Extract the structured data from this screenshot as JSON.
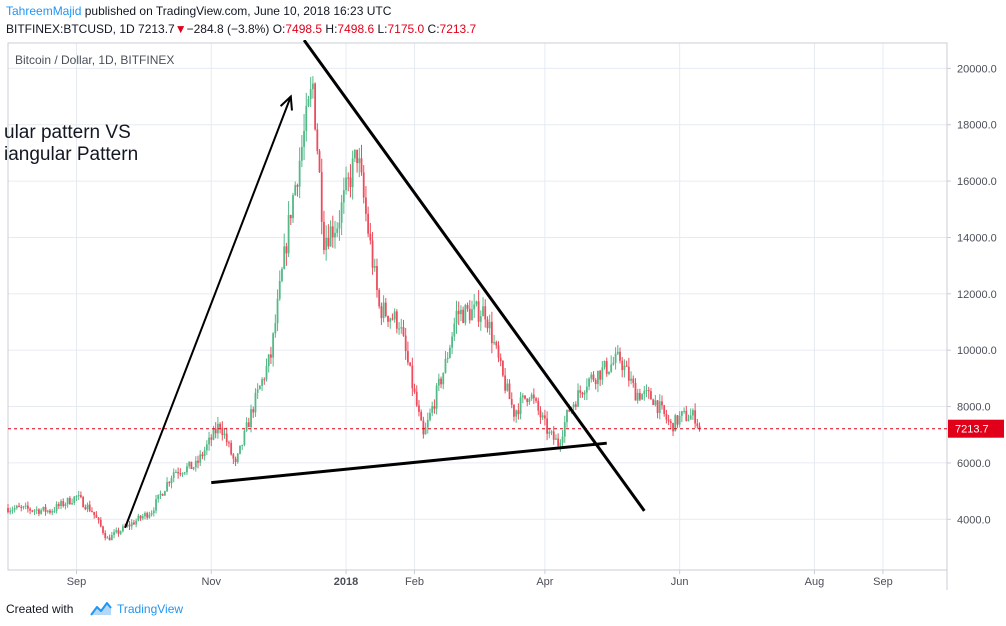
{
  "header": {
    "author": "TahreemMajid",
    "published_text": "published on TradingView.com, June 10, 2018 16:23 UTC",
    "symbol": "BITFINEX:BTCUSD, 1D",
    "last": "7213.7",
    "down_arrow": "▼",
    "change": "−284.8 (−3.8%)",
    "o_label": "O:",
    "o_value": "7498.5",
    "h_label": "H:",
    "h_value": "7498.6",
    "l_label": "L:",
    "l_value": "7175.0",
    "c_label": "C:",
    "c_value": "7213.7"
  },
  "chart": {
    "series_title": "Bitcoin / Dollar, 1D, BITFINEX",
    "annotation_line1": "ular pattern  VS",
    "annotation_line2": "iangular Pattern",
    "price_label": "7213.7"
  },
  "colors": {
    "up": "#53b987",
    "down": "#eb4d5c",
    "price_line": "#e0001a",
    "grid": "#e6ebf2",
    "accent": "#2196f3"
  },
  "footer": {
    "created_with": "Created with",
    "brand": "TradingView",
    "logo_icon": "tradingview-cloud-icon"
  },
  "chart_data": {
    "type": "candlestick",
    "title": "Bitcoin / Dollar, 1D, BITFINEX",
    "y_ticks": [
      "4000.0",
      "6000.0",
      "8000.0",
      "10000.0",
      "12000.0",
      "14000.0",
      "16000.0",
      "18000.0",
      "20000.0"
    ],
    "x_ticks": [
      "Sep",
      "Nov",
      "2018",
      "Feb",
      "Apr",
      "Jun",
      "Aug",
      "Sep"
    ],
    "ylim": [
      2200,
      20900
    ],
    "last_price": 7213.7,
    "anchors": [
      {
        "date": "2017-08-01",
        "price": 4400
      },
      {
        "date": "2017-08-20",
        "price": 4300
      },
      {
        "date": "2017-09-01",
        "price": 4800
      },
      {
        "date": "2017-09-08",
        "price": 4300
      },
      {
        "date": "2017-09-15",
        "price": 3300
      },
      {
        "date": "2017-09-25",
        "price": 3800
      },
      {
        "date": "2017-10-05",
        "price": 4300
      },
      {
        "date": "2017-10-15",
        "price": 5700
      },
      {
        "date": "2017-10-25",
        "price": 5900
      },
      {
        "date": "2017-11-05",
        "price": 7400
      },
      {
        "date": "2017-11-12",
        "price": 5900
      },
      {
        "date": "2017-11-20",
        "price": 8000
      },
      {
        "date": "2017-11-28",
        "price": 9800
      },
      {
        "date": "2017-12-07",
        "price": 15000
      },
      {
        "date": "2017-12-17",
        "price": 19400
      },
      {
        "date": "2017-12-22",
        "price": 14000
      },
      {
        "date": "2017-12-28",
        "price": 14500
      },
      {
        "date": "2018-01-06",
        "price": 17000
      },
      {
        "date": "2018-01-16",
        "price": 11500
      },
      {
        "date": "2018-01-25",
        "price": 11000
      },
      {
        "date": "2018-02-05",
        "price": 6900
      },
      {
        "date": "2018-02-15",
        "price": 9500
      },
      {
        "date": "2018-02-20",
        "price": 11300
      },
      {
        "date": "2018-03-05",
        "price": 11400
      },
      {
        "date": "2018-03-13",
        "price": 9000
      },
      {
        "date": "2018-03-18",
        "price": 7800
      },
      {
        "date": "2018-03-25",
        "price": 8500
      },
      {
        "date": "2018-04-03",
        "price": 7000
      },
      {
        "date": "2018-04-07",
        "price": 6700
      },
      {
        "date": "2018-04-12",
        "price": 7900
      },
      {
        "date": "2018-04-20",
        "price": 8900
      },
      {
        "date": "2018-05-05",
        "price": 9700
      },
      {
        "date": "2018-05-12",
        "price": 8500
      },
      {
        "date": "2018-05-20",
        "price": 8300
      },
      {
        "date": "2018-05-28",
        "price": 7300
      },
      {
        "date": "2018-06-02",
        "price": 7650
      },
      {
        "date": "2018-06-08",
        "price": 7650
      },
      {
        "date": "2018-06-10",
        "price": 7213.7
      }
    ],
    "drawings": [
      {
        "name": "impulse-arrow",
        "from": {
          "date": "2017-09-23",
          "price": 3700
        },
        "to": {
          "date": "2017-12-07",
          "price": 19000
        }
      },
      {
        "name": "resistance-trendline",
        "from": {
          "date": "2017-12-13",
          "price": 21000
        },
        "to": {
          "date": "2018-05-16",
          "price": 4300
        }
      },
      {
        "name": "support-trendline",
        "from": {
          "date": "2017-11-01",
          "price": 5300
        },
        "to": {
          "date": "2018-04-29",
          "price": 6700
        }
      }
    ]
  }
}
